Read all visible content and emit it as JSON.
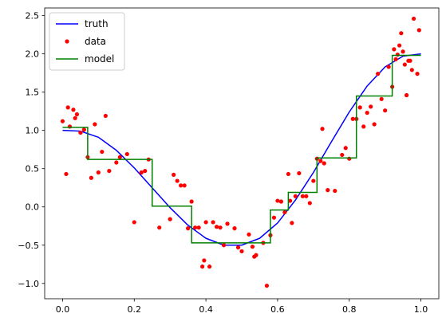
{
  "chart_data": {
    "type": "line",
    "title": "",
    "xlabel": "",
    "ylabel": "",
    "xlim": [
      -0.05,
      1.05
    ],
    "ylim": [
      -1.2,
      2.6
    ],
    "x_ticks": [
      0.0,
      0.2,
      0.4,
      0.6,
      0.8,
      1.0
    ],
    "x_tick_labels": [
      "0.0",
      "0.2",
      "0.4",
      "0.6",
      "0.8",
      "1.0"
    ],
    "y_ticks": [
      -1.0,
      -0.5,
      0.0,
      0.5,
      1.0,
      1.5,
      2.0,
      2.5
    ],
    "y_tick_labels": [
      "−1.0",
      "−0.5",
      "0.0",
      "0.5",
      "1.0",
      "1.5",
      "2.0",
      "2.5"
    ],
    "grid": false,
    "legend": {
      "placement": "top-left",
      "entries": [
        {
          "name": "truth",
          "color": "#0000ff",
          "style": "line"
        },
        {
          "name": "data",
          "color": "#ff0000",
          "style": "marker"
        },
        {
          "name": "model",
          "color": "#008000",
          "style": "line"
        }
      ]
    },
    "series": [
      {
        "name": "truth",
        "color": "#0000ff",
        "x": [
          0.0,
          0.05,
          0.1,
          0.15,
          0.2,
          0.25,
          0.3,
          0.35,
          0.4,
          0.45,
          0.5,
          0.55,
          0.6,
          0.65,
          0.7,
          0.75,
          0.8,
          0.85,
          0.9,
          0.95,
          1.0
        ],
        "y": [
          1.0,
          0.99,
          0.91,
          0.74,
          0.51,
          0.25,
          -0.01,
          -0.24,
          -0.41,
          -0.5,
          -0.5,
          -0.41,
          -0.21,
          0.09,
          0.45,
          0.85,
          1.24,
          1.58,
          1.83,
          1.97,
          2.0
        ]
      },
      {
        "name": "data",
        "color": "#ff0000",
        "x": [
          0.0,
          0.01,
          0.015,
          0.02,
          0.03,
          0.035,
          0.04,
          0.05,
          0.06,
          0.07,
          0.08,
          0.09,
          0.1,
          0.11,
          0.12,
          0.13,
          0.15,
          0.16,
          0.18,
          0.2,
          0.22,
          0.23,
          0.24,
          0.27,
          0.3,
          0.31,
          0.32,
          0.33,
          0.34,
          0.35,
          0.36,
          0.37,
          0.38,
          0.39,
          0.395,
          0.4,
          0.41,
          0.42,
          0.43,
          0.44,
          0.45,
          0.46,
          0.48,
          0.49,
          0.5,
          0.52,
          0.53,
          0.535,
          0.54,
          0.56,
          0.57,
          0.58,
          0.59,
          0.6,
          0.61,
          0.62,
          0.63,
          0.635,
          0.64,
          0.65,
          0.66,
          0.67,
          0.68,
          0.69,
          0.7,
          0.71,
          0.72,
          0.725,
          0.73,
          0.74,
          0.76,
          0.78,
          0.79,
          0.8,
          0.81,
          0.82,
          0.83,
          0.84,
          0.85,
          0.86,
          0.87,
          0.88,
          0.89,
          0.9,
          0.91,
          0.92,
          0.925,
          0.93,
          0.935,
          0.94,
          0.945,
          0.95,
          0.955,
          0.96,
          0.965,
          0.97,
          0.975,
          0.98,
          0.99,
          0.995
        ],
        "y": [
          1.12,
          0.43,
          1.3,
          1.05,
          1.27,
          1.16,
          1.21,
          0.97,
          1.01,
          0.65,
          0.38,
          1.08,
          0.45,
          0.72,
          1.19,
          0.47,
          0.58,
          0.65,
          0.69,
          -0.2,
          0.45,
          0.47,
          0.62,
          -0.27,
          -0.16,
          0.42,
          0.34,
          0.28,
          0.28,
          -0.28,
          0.07,
          -0.27,
          -0.27,
          -0.78,
          -0.7,
          -0.2,
          -0.78,
          -0.2,
          -0.26,
          -0.27,
          -0.5,
          -0.22,
          -0.28,
          -0.53,
          -0.58,
          -0.36,
          -0.52,
          -0.65,
          -0.63,
          -0.47,
          -1.03,
          -0.37,
          -0.14,
          0.08,
          0.07,
          -0.07,
          0.43,
          0.08,
          -0.21,
          0.14,
          0.44,
          0.14,
          0.14,
          0.05,
          0.34,
          0.63,
          0.6,
          1.02,
          0.57,
          0.22,
          0.21,
          0.68,
          0.77,
          0.63,
          1.15,
          1.15,
          1.3,
          1.05,
          1.23,
          1.31,
          1.08,
          1.74,
          1.41,
          1.26,
          1.83,
          1.57,
          2.06,
          1.93,
          1.99,
          2.11,
          2.27,
          2.03,
          1.86,
          1.46,
          1.91,
          1.91,
          1.79,
          2.46,
          1.74,
          2.31
        ]
      },
      {
        "name": "model",
        "color": "#008000",
        "type": "step",
        "edges": [
          0.0,
          0.07,
          0.11,
          0.25,
          0.36,
          0.58,
          0.63,
          0.71,
          0.82,
          0.92,
          1.0
        ],
        "levels": [
          1.04,
          0.62,
          0.62,
          0.01,
          -0.47,
          -0.04,
          0.19,
          0.64,
          1.45,
          1.98
        ]
      }
    ]
  }
}
